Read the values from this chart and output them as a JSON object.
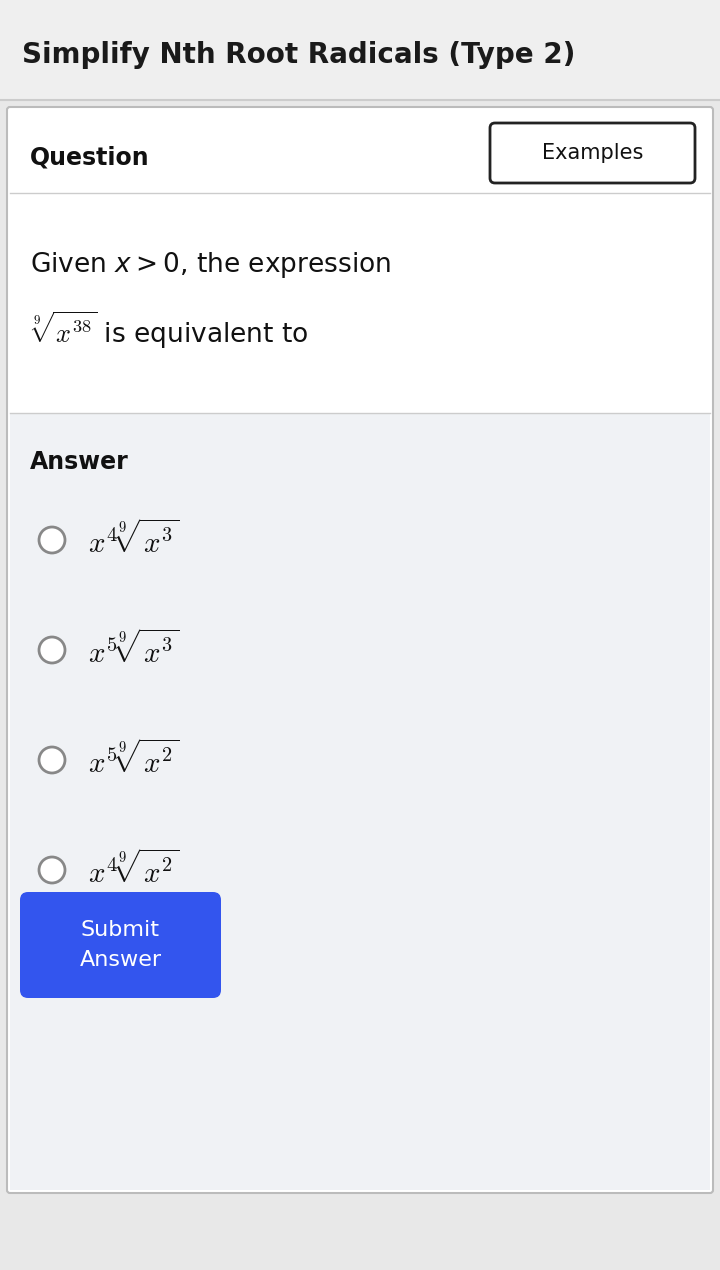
{
  "title": "Simplify Nth Root Radicals (Type 2)",
  "title_fontsize": 20,
  "title_color": "#1a1a1a",
  "title_bg": "#efefef",
  "card_bg": "#ffffff",
  "answer_bg": "#f0f2f5",
  "question_label": "Question",
  "examples_label": "Examples",
  "question_text_line1": "Given $x > 0$, the expression",
  "question_text_line2": "$\\sqrt[9]{x^{38}}$ is equivalent to",
  "answer_label": "Answer",
  "choices": [
    "$x^4\\sqrt[9]{x^3}$",
    "$x^5\\sqrt[9]{x^3}$",
    "$x^5\\sqrt[9]{x^2}$",
    "$x^4\\sqrt[9]{x^2}$"
  ],
  "submit_text": "Submit\nAnswer",
  "submit_bg": "#3355ee",
  "submit_text_color": "#ffffff",
  "border_color": "#cccccc",
  "examples_border_color": "#222222",
  "outer_bg": "#e8e8e8",
  "card_border": "#bbbbbb"
}
